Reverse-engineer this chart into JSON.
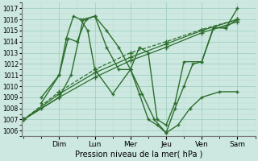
{
  "xlabel": "Pression niveau de la mer( hPa )",
  "ylim": [
    1005.5,
    1017.5
  ],
  "yticks": [
    1006,
    1007,
    1008,
    1009,
    1010,
    1011,
    1012,
    1013,
    1014,
    1015,
    1016,
    1017
  ],
  "days": [
    "Dim",
    "Lun",
    "Mer",
    "Jeu",
    "Ven",
    "Sam"
  ],
  "day_x": [
    1,
    2,
    3,
    4,
    5,
    6
  ],
  "line_color": "#2d6e2d",
  "bg_color": "#cce8e0",
  "grid_major_color": "#99ccbb",
  "grid_minor_color": "#bbddcc",
  "series": [
    {
      "x": [
        0.0,
        1.0,
        2.0,
        3.0,
        4.0,
        5.0,
        6.0
      ],
      "y": [
        1007.0,
        1009.0,
        1010.8,
        1012.3,
        1013.5,
        1014.8,
        1015.8
      ],
      "style": "-",
      "marker": "+",
      "markersize": 4,
      "linewidth": 0.9
    },
    {
      "x": [
        0.0,
        1.0,
        2.0,
        3.0,
        4.0,
        5.0,
        6.0
      ],
      "y": [
        1007.0,
        1009.3,
        1011.2,
        1012.6,
        1013.8,
        1015.0,
        1016.0
      ],
      "style": "-",
      "marker": "+",
      "markersize": 4,
      "linewidth": 0.9
    },
    {
      "x": [
        0.0,
        1.0,
        2.0,
        3.0,
        4.0,
        5.0,
        6.0
      ],
      "y": [
        1007.0,
        1009.5,
        1011.5,
        1013.0,
        1014.0,
        1015.1,
        1016.0
      ],
      "style": "--",
      "marker": "+",
      "markersize": 4,
      "linewidth": 0.9
    },
    {
      "x": [
        0.0,
        0.5,
        1.0,
        1.33,
        1.67,
        2.0,
        2.33,
        2.67,
        3.0,
        3.33,
        3.67,
        4.0,
        4.33,
        4.67,
        5.0,
        5.5,
        6.0
      ],
      "y": [
        1007.0,
        1008.0,
        1009.0,
        1011.0,
        1016.0,
        1016.3,
        1015.0,
        1013.5,
        1011.5,
        1009.3,
        1007.0,
        1005.8,
        1006.5,
        1008.0,
        1009.0,
        1009.5,
        1009.5
      ],
      "style": "-",
      "marker": "+",
      "markersize": 3.5,
      "linewidth": 1.0
    },
    {
      "x": [
        0.5,
        1.0,
        1.25,
        1.5,
        1.75,
        2.0,
        2.33,
        2.67,
        3.0,
        3.25,
        3.5,
        3.75,
        4.0,
        4.25,
        4.5,
        4.75,
        5.0,
        5.33,
        5.67,
        6.0
      ],
      "y": [
        1008.5,
        1011.0,
        1014.3,
        1014.0,
        1016.0,
        1016.3,
        1013.5,
        1011.5,
        1011.5,
        1009.3,
        1007.0,
        1006.5,
        1005.8,
        1008.0,
        1010.0,
        1012.0,
        1012.2,
        1015.2,
        1015.3,
        1016.0
      ],
      "style": "-",
      "marker": "+",
      "markersize": 3.5,
      "linewidth": 1.0
    },
    {
      "x": [
        0.5,
        1.0,
        1.2,
        1.4,
        1.6,
        1.8,
        2.0,
        2.5,
        3.0,
        3.25,
        3.5,
        3.75,
        4.0,
        4.25,
        4.5,
        5.0,
        5.33,
        5.67,
        6.0
      ],
      "y": [
        1009.0,
        1011.0,
        1014.3,
        1016.3,
        1016.0,
        1015.0,
        1011.5,
        1009.3,
        1011.5,
        1013.5,
        1013.0,
        1007.0,
        1006.5,
        1008.5,
        1012.2,
        1012.2,
        1015.3,
        1015.2,
        1017.0
      ],
      "style": "-",
      "marker": "+",
      "markersize": 3.5,
      "linewidth": 1.0
    }
  ]
}
